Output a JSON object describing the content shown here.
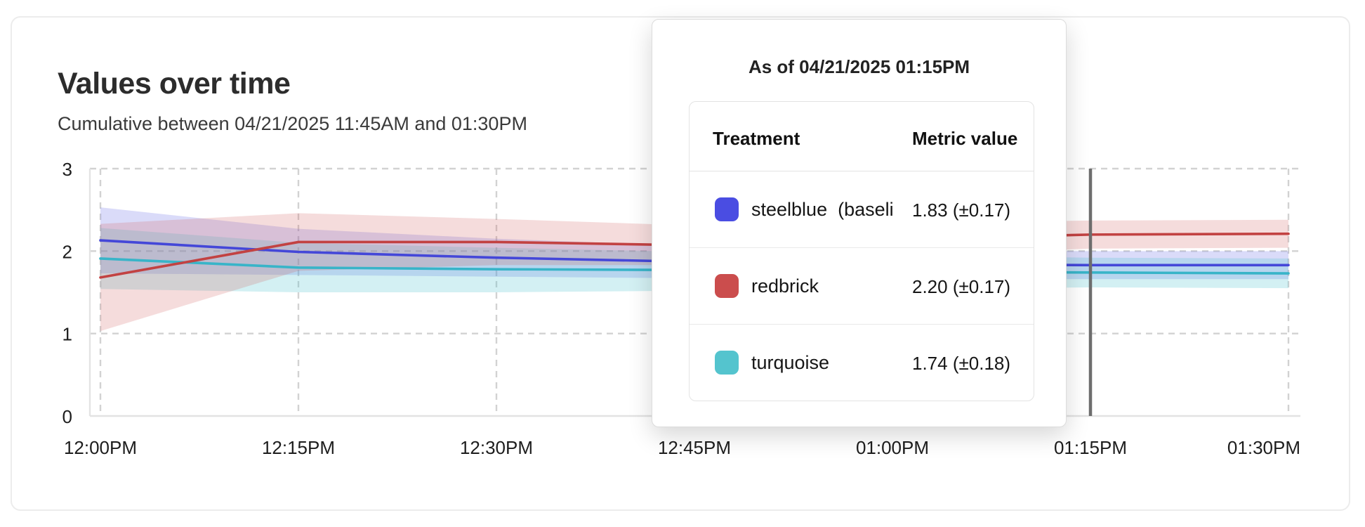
{
  "header": {
    "title": "Values over time",
    "subtitle": "Cumulative between 04/21/2025 11:45AM and 01:30PM"
  },
  "tooltip": {
    "title": "As of 04/21/2025 01:15PM",
    "columns": {
      "treatment": "Treatment",
      "metric": "Metric value"
    },
    "rows": [
      {
        "label": "steelblue  (baseli",
        "value": "1.83 (±0.17)",
        "color": "#4a4de2"
      },
      {
        "label": "redbrick",
        "value": "2.20 (±0.17)",
        "color": "#cb4d4d"
      },
      {
        "label": "turquoise",
        "value": "1.74 (±0.18)",
        "color": "#54c4ce"
      }
    ]
  },
  "chart_data": {
    "type": "line",
    "title": "Values over time",
    "x_labels": [
      "12:00PM",
      "12:15PM",
      "12:30PM",
      "12:45PM",
      "01:00PM",
      "01:15PM",
      "01:30PM"
    ],
    "yticks": [
      "0",
      "1",
      "2",
      "3"
    ],
    "ylim": [
      0,
      3
    ],
    "grid": "dashed",
    "legend_position": "tooltip",
    "series": [
      {
        "name": "steelblue (baseline)",
        "line_color": "#4447d8",
        "band_color": "rgba(101,106,230,0.24)",
        "values": [
          2.13,
          1.99,
          1.92,
          1.87,
          1.84,
          1.83,
          1.83
        ],
        "upper": [
          2.53,
          2.27,
          2.15,
          2.06,
          2.01,
          2.0,
          2.0
        ],
        "lower": [
          1.73,
          1.71,
          1.69,
          1.67,
          1.66,
          1.66,
          1.66
        ]
      },
      {
        "name": "turquoise",
        "line_color": "#38b4c8",
        "band_color": "rgba(86,198,210,0.26)",
        "values": [
          1.91,
          1.8,
          1.78,
          1.77,
          1.75,
          1.74,
          1.73
        ],
        "upper": [
          2.28,
          2.1,
          2.04,
          1.99,
          1.95,
          1.92,
          1.91
        ],
        "lower": [
          1.54,
          1.5,
          1.5,
          1.52,
          1.54,
          1.56,
          1.55
        ]
      },
      {
        "name": "redbrick",
        "line_color": "#c24242",
        "band_color": "rgba(208,95,95,0.22)",
        "values": [
          1.68,
          2.11,
          2.11,
          2.07,
          2.14,
          2.2,
          2.21
        ],
        "upper": [
          2.33,
          2.46,
          2.39,
          2.31,
          2.34,
          2.37,
          2.38
        ],
        "lower": [
          1.03,
          1.76,
          1.83,
          1.83,
          1.94,
          2.03,
          2.04
        ]
      }
    ],
    "hover_rule": {
      "x_index": 5,
      "x_label": "01:15PM",
      "color": "#6d6d6d"
    }
  }
}
